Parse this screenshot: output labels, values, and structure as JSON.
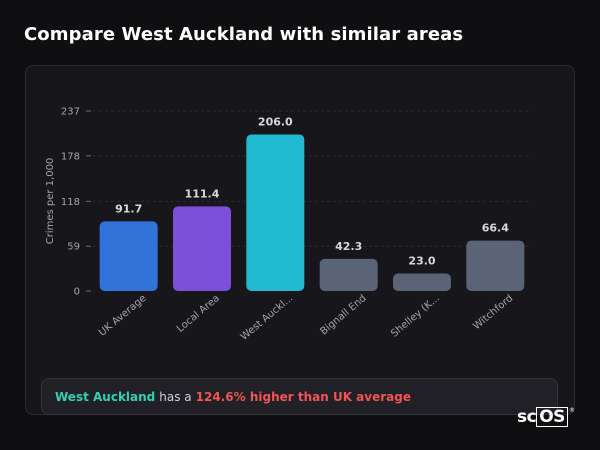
{
  "header": {
    "title": "Compare West Auckland with similar areas"
  },
  "chart_data": {
    "type": "bar",
    "ylabel": "Crimes per 1,000",
    "xlabel": "",
    "ylim": [
      0,
      237
    ],
    "yticks": [
      0,
      59,
      118,
      178,
      237
    ],
    "grid": true,
    "categories": [
      "UK Average",
      "Local Area",
      "West Auckl...",
      "Bignall End",
      "Shelley (K...",
      "Witchford"
    ],
    "values": [
      91.7,
      111.4,
      206.0,
      42.3,
      23.0,
      66.4
    ],
    "value_labels": [
      "91.7",
      "111.4",
      "206.0",
      "42.3",
      "23.0",
      "66.4"
    ],
    "colors": [
      "#3373d9",
      "#7c4fd8",
      "#20b9d0",
      "#5b6476",
      "#5b6476",
      "#5b6476"
    ]
  },
  "callout": {
    "area": "West Auckland",
    "middle": "has a",
    "difference": "124.6% higher than UK average"
  },
  "brand": {
    "prefix": "sc",
    "boxed": "OS",
    "mark": "®"
  }
}
